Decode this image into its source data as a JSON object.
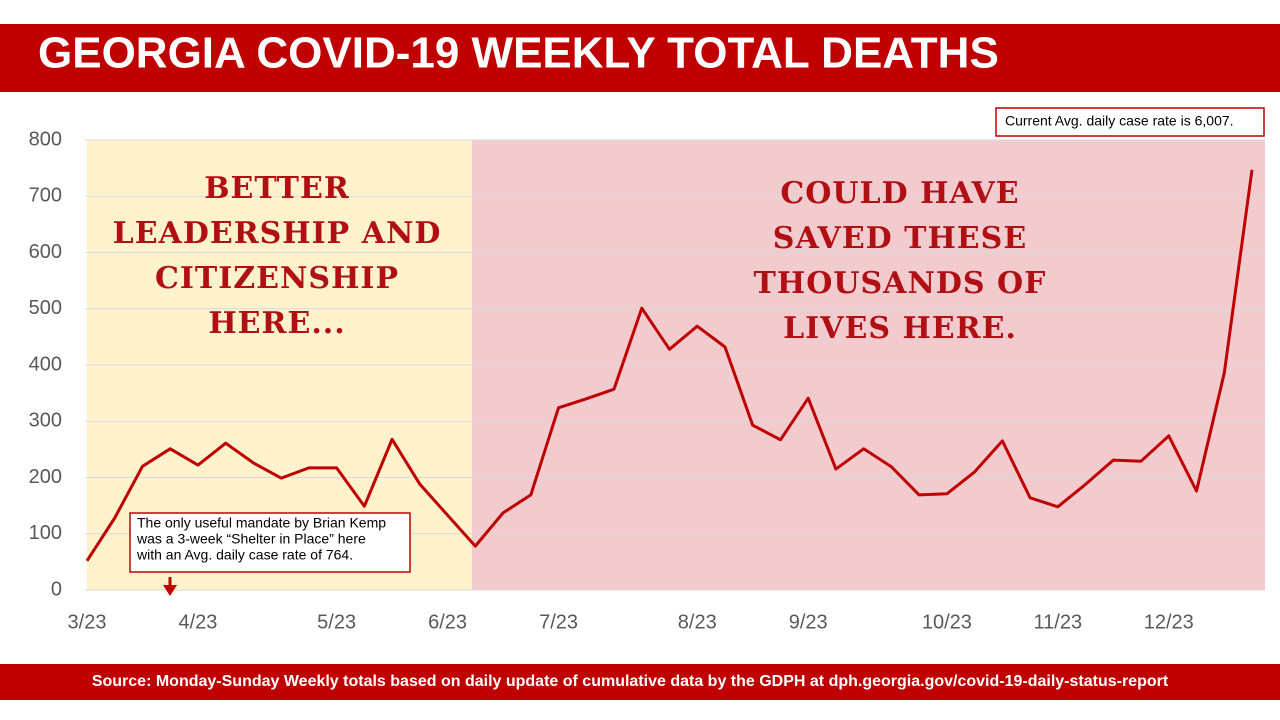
{
  "chart_data": {
    "type": "line",
    "title": "GEORGIA COVID-19 WEEKLY TOTAL DEATHS",
    "source": "Source: Monday-Sunday Weekly totals based on daily update of cumulative data by the GDPH at dph.georgia.gov/covid-19-daily-status-report",
    "annotations": {
      "left_message": [
        "BETTER",
        "LEADERSHIP AND",
        "CITIZENSHIP",
        "HERE..."
      ],
      "right_message": [
        "COULD HAVE",
        "SAVED THESE",
        "THOUSANDS OF",
        "LIVES HERE."
      ],
      "shelter_note": [
        "The only useful mandate by Brian Kemp",
        "was a 3-week “Shelter in Place” here",
        "with an Avg. daily case rate of 764."
      ],
      "current_note": "Current Avg. daily case rate is 6,007."
    },
    "categories": [
      "3/23",
      null,
      null,
      null,
      "4/23",
      null,
      null,
      null,
      null,
      "5/23",
      null,
      null,
      null,
      "6/23",
      null,
      null,
      null,
      "7/23",
      null,
      null,
      null,
      null,
      "8/23",
      null,
      null,
      null,
      "9/23",
      null,
      null,
      null,
      null,
      "10/23",
      null,
      null,
      null,
      "11/23",
      null,
      null,
      null,
      "12/23",
      null,
      null,
      null
    ],
    "series": [
      {
        "name": "Weekly total deaths",
        "color": "#c00000",
        "values": [
          52,
          128,
          220,
          251,
          222,
          261,
          226,
          199,
          217,
          217,
          149,
          268,
          188,
          133,
          78,
          137,
          169,
          324,
          340,
          357,
          501,
          428,
          469,
          432,
          293,
          267,
          341,
          215,
          251,
          219,
          169,
          171,
          210,
          265,
          164,
          148,
          188,
          231,
          229,
          274,
          176,
          386,
          747
        ]
      }
    ],
    "ylim": [
      0,
      800
    ],
    "yticks": [
      0,
      100,
      200,
      300,
      400,
      500,
      600,
      700,
      800
    ],
    "grid": true
  }
}
